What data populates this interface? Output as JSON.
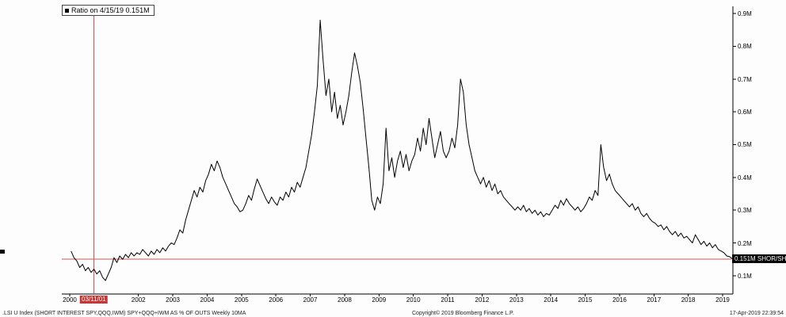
{
  "legend": {
    "label": "Ratio on 4/15/19 0.151M"
  },
  "value_tag": "0.151M SHOR/SHAR",
  "footer": {
    "left": ".LSI U Index (SHORT INTEREST SPY,QQQ,IWM) SPY+QQQ+IWM AS % OF OUTS  Weekly 10MA",
    "copyright": "Copyright© 2019 Bloomberg Finance L.P.",
    "timestamp": "17-Apr-2019 22:39:54"
  },
  "colors": {
    "line": "#000000",
    "crosshair": "#cc5555",
    "date_highlight": "#cc3333",
    "axis": "#000000"
  },
  "chart_data": {
    "type": "line",
    "title": "Ratio on 4/15/19 0.151M",
    "ylabel": "SHOR/SHAR (M)",
    "xlim": [
      1999.77,
      2019.3
    ],
    "ylim": [
      0.044,
      0.922
    ],
    "x_tick_years": [
      2000,
      2002,
      2003,
      2004,
      2005,
      2006,
      2007,
      2008,
      2009,
      2010,
      2011,
      2012,
      2013,
      2014,
      2015,
      2016,
      2017,
      2018,
      2019
    ],
    "y_ticks": [
      {
        "value": 0.9,
        "label": "0.9M"
      },
      {
        "value": 0.8,
        "label": "0.8M"
      },
      {
        "value": 0.7,
        "label": "0.7M"
      },
      {
        "value": 0.6,
        "label": "0.6M"
      },
      {
        "value": 0.5,
        "label": "0.5M"
      },
      {
        "value": 0.4,
        "label": "0.4M"
      },
      {
        "value": 0.3,
        "label": "0.3M"
      },
      {
        "value": 0.2,
        "label": "0.2M"
      },
      {
        "value": 0.1,
        "label": "0.1M"
      }
    ],
    "crosshair": {
      "x_year": 2000.7,
      "y_value": 0.151,
      "date_label": "03/11/01"
    },
    "last_point": {
      "date": "4/15/19",
      "value": 0.151
    },
    "x_start": 2000.04,
    "x_step": 0.08333,
    "values": [
      0.175,
      0.155,
      0.145,
      0.125,
      0.135,
      0.115,
      0.125,
      0.11,
      0.12,
      0.105,
      0.115,
      0.095,
      0.085,
      0.105,
      0.125,
      0.155,
      0.14,
      0.16,
      0.15,
      0.165,
      0.155,
      0.17,
      0.16,
      0.17,
      0.165,
      0.18,
      0.17,
      0.16,
      0.175,
      0.165,
      0.18,
      0.17,
      0.185,
      0.175,
      0.19,
      0.2,
      0.195,
      0.215,
      0.24,
      0.23,
      0.27,
      0.3,
      0.33,
      0.36,
      0.34,
      0.37,
      0.355,
      0.39,
      0.41,
      0.44,
      0.42,
      0.45,
      0.43,
      0.4,
      0.38,
      0.36,
      0.34,
      0.32,
      0.31,
      0.295,
      0.3,
      0.32,
      0.345,
      0.33,
      0.365,
      0.395,
      0.375,
      0.355,
      0.335,
      0.32,
      0.34,
      0.325,
      0.315,
      0.34,
      0.33,
      0.355,
      0.34,
      0.37,
      0.355,
      0.385,
      0.37,
      0.4,
      0.43,
      0.48,
      0.53,
      0.6,
      0.68,
      0.88,
      0.76,
      0.65,
      0.7,
      0.6,
      0.66,
      0.58,
      0.62,
      0.56,
      0.6,
      0.65,
      0.72,
      0.78,
      0.74,
      0.69,
      0.61,
      0.52,
      0.43,
      0.33,
      0.3,
      0.34,
      0.32,
      0.38,
      0.55,
      0.42,
      0.46,
      0.4,
      0.45,
      0.48,
      0.43,
      0.47,
      0.42,
      0.45,
      0.47,
      0.52,
      0.48,
      0.55,
      0.5,
      0.58,
      0.52,
      0.46,
      0.5,
      0.54,
      0.48,
      0.46,
      0.48,
      0.52,
      0.49,
      0.56,
      0.7,
      0.66,
      0.56,
      0.5,
      0.46,
      0.42,
      0.4,
      0.38,
      0.4,
      0.37,
      0.39,
      0.36,
      0.38,
      0.35,
      0.36,
      0.34,
      0.33,
      0.32,
      0.31,
      0.3,
      0.31,
      0.3,
      0.315,
      0.295,
      0.305,
      0.29,
      0.3,
      0.285,
      0.295,
      0.28,
      0.29,
      0.285,
      0.3,
      0.315,
      0.305,
      0.33,
      0.315,
      0.335,
      0.32,
      0.31,
      0.3,
      0.31,
      0.295,
      0.305,
      0.32,
      0.34,
      0.33,
      0.36,
      0.345,
      0.5,
      0.43,
      0.39,
      0.41,
      0.38,
      0.36,
      0.35,
      0.34,
      0.33,
      0.32,
      0.31,
      0.32,
      0.3,
      0.31,
      0.29,
      0.28,
      0.29,
      0.275,
      0.265,
      0.26,
      0.25,
      0.255,
      0.24,
      0.25,
      0.235,
      0.225,
      0.235,
      0.22,
      0.23,
      0.215,
      0.22,
      0.21,
      0.2,
      0.225,
      0.21,
      0.195,
      0.205,
      0.19,
      0.2,
      0.185,
      0.195,
      0.18,
      0.175,
      0.17,
      0.16,
      0.158,
      0.151
    ]
  }
}
